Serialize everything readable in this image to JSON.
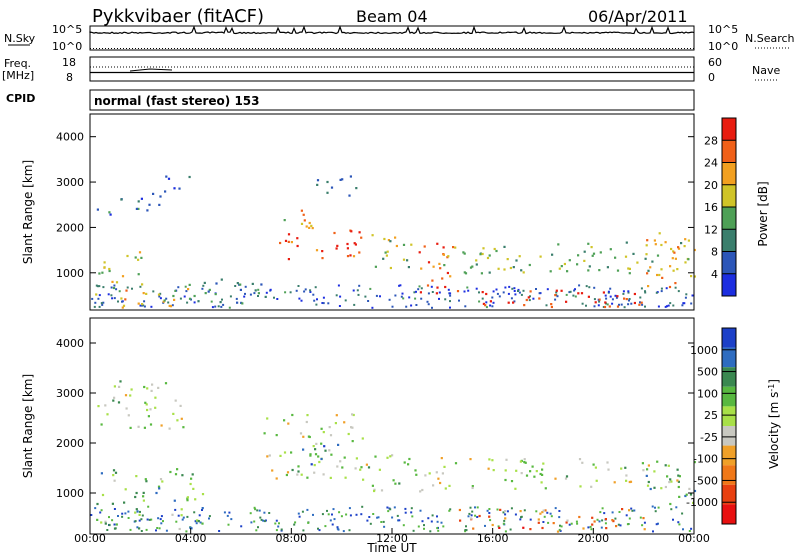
{
  "header": {
    "station": "Pykkvibaer (fitACF)",
    "beam": "Beam 04",
    "date": "06/Apr/2011"
  },
  "summary_labels": {
    "nsky": "N.Sky",
    "nsky_ticks": [
      "10^5",
      "10^0"
    ],
    "nsearch": "N.Search",
    "nsearch_ticks": [
      "10^5",
      "10^0"
    ],
    "freq": "Freq.",
    "freq_unit": "[MHz]",
    "freq_ticks": [
      "18",
      "8"
    ],
    "nave": "Nave",
    "nave_ticks": [
      "60",
      "0"
    ],
    "cpid": "CPID",
    "cpid_value": "normal (fast stereo) 153"
  },
  "chart_data": [
    {
      "type": "heatmap",
      "name": "power-panel",
      "ylabel": "Slant Range [km]",
      "yticks": [
        "1000",
        "2000",
        "3000",
        "4000"
      ],
      "ylim": [
        180,
        4500
      ],
      "xlim": [
        0,
        24
      ],
      "colorbar": {
        "label": "Power [dB]",
        "ticks": [
          "4",
          "8",
          "12",
          "16",
          "20",
          "24",
          "28"
        ],
        "range": [
          0,
          32
        ],
        "colors": [
          "#1c2ee0",
          "#2c56b8",
          "#3a7e6c",
          "#4ea056",
          "#d0c428",
          "#f2a020",
          "#f06018",
          "#e81c10"
        ]
      },
      "regions": [
        {
          "t": [
            0.2,
            2.8
          ],
          "r": [
            2300,
            2800
          ],
          "level": 0.25
        },
        {
          "t": [
            2.8,
            4.0
          ],
          "r": [
            2800,
            3250
          ],
          "level": 0.2
        },
        {
          "t": [
            0.1,
            2.2
          ],
          "r": [
            900,
            1500
          ],
          "level": 0.55
        },
        {
          "t": [
            0.2,
            4.0
          ],
          "r": [
            250,
            850
          ],
          "level": 0.6
        },
        {
          "t": [
            4.0,
            7.0
          ],
          "r": [
            250,
            900
          ],
          "level": 0.3
        },
        {
          "t": [
            7.5,
            10.8
          ],
          "r": [
            1300,
            2000
          ],
          "level": 0.85
        },
        {
          "t": [
            6.8,
            9.0
          ],
          "r": [
            2000,
            2400
          ],
          "level": 0.6
        },
        {
          "t": [
            8.8,
            10.6
          ],
          "r": [
            2700,
            3200
          ],
          "level": 0.3
        },
        {
          "t": [
            11.0,
            12.9
          ],
          "r": [
            1100,
            1900
          ],
          "level": 0.5
        },
        {
          "t": [
            13.0,
            14.4
          ],
          "r": [
            300,
            1700
          ],
          "level": 0.8
        },
        {
          "t": [
            14.4,
            22.5
          ],
          "r": [
            250,
            650
          ],
          "level": 0.95
        },
        {
          "t": [
            14.0,
            24.0
          ],
          "r": [
            1000,
            1700
          ],
          "level": 0.45
        },
        {
          "t": [
            22.0,
            24.0
          ],
          "r": [
            700,
            1900
          ],
          "level": 0.7
        }
      ]
    },
    {
      "type": "heatmap",
      "name": "velocity-panel",
      "ylabel": "Slant Range [km]",
      "yticks": [
        "1000",
        "2000",
        "3000",
        "4000"
      ],
      "ylim": [
        180,
        4500
      ],
      "xlim": [
        0,
        24
      ],
      "xlabel": "Time UT",
      "xticks": [
        "00:00",
        "04:00",
        "08:00",
        "12:00",
        "16:00",
        "20:00",
        "00:00"
      ],
      "colorbar": {
        "label": "Velocity [m s",
        "label_sup": "-1",
        "label_end": "]",
        "ticks": [
          "1000",
          "500",
          "100",
          "25",
          "-25",
          "-100",
          "-500",
          "-1000"
        ],
        "colors": [
          "#1c40c8",
          "#2e6cc0",
          "#3a8850",
          "#58b840",
          "#a8e048",
          "#c8c8c0",
          "#f0a028",
          "#f07818",
          "#e84010",
          "#e81010"
        ]
      },
      "regions": [
        {
          "t": [
            0.2,
            3.8
          ],
          "r": [
            2300,
            3300
          ],
          "level": 0.45
        },
        {
          "t": [
            0.1,
            4.5
          ],
          "r": [
            300,
            1500
          ],
          "level": 0.35
        },
        {
          "t": [
            6.8,
            10.8
          ],
          "r": [
            1300,
            2600
          ],
          "level": 0.45
        },
        {
          "t": [
            8.0,
            10.2
          ],
          "r": [
            1500,
            2000
          ],
          "level": 0.25
        },
        {
          "t": [
            10.6,
            14.2
          ],
          "r": [
            1000,
            1800
          ],
          "level": 0.45
        },
        {
          "t": [
            14.5,
            22.5
          ],
          "r": [
            250,
            700
          ],
          "level": 0.75
        },
        {
          "t": [
            14.0,
            24.0
          ],
          "r": [
            1100,
            1700
          ],
          "level": 0.45
        },
        {
          "t": [
            22.0,
            24.0
          ],
          "r": [
            800,
            1700
          ],
          "level": 0.3
        }
      ]
    }
  ],
  "colors": {
    "axis": "#000000",
    "background": "#ffffff"
  }
}
